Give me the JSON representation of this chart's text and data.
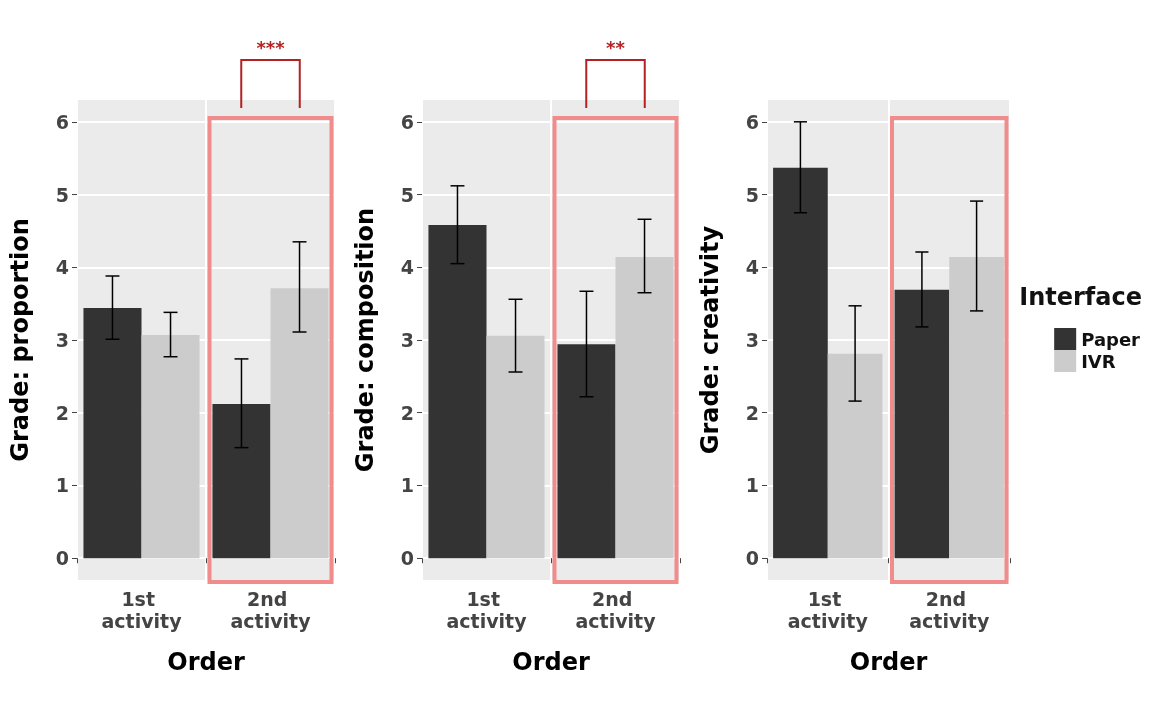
{
  "chart_data": [
    {
      "type": "bar",
      "ylabel": "Grade: proportion",
      "xlabel": "Order",
      "categories": [
        "1st activity",
        "2nd activity"
      ],
      "ylim": [
        -0.3,
        6.3
      ],
      "yticks": [
        0,
        1,
        2,
        3,
        4,
        5,
        6
      ],
      "grid": true,
      "legend": false,
      "annotations": [
        "***"
      ],
      "series": [
        {
          "color": "#333333",
          "values": [
            3.44,
            2.12
          ],
          "errors": [
            [
              3.01,
              3.88
            ],
            [
              1.52,
              2.74
            ]
          ]
        },
        {
          "color": "#cccccc",
          "values": [
            3.07,
            3.71
          ],
          "errors": [
            [
              2.77,
              3.38
            ],
            [
              3.11,
              4.35
            ]
          ]
        }
      ]
    },
    {
      "type": "bar",
      "ylabel": "Grade: composition",
      "xlabel": "Order",
      "categories": [
        "1st activity",
        "2nd activity"
      ],
      "ylim": [
        -0.3,
        6.3
      ],
      "yticks": [
        0,
        1,
        2,
        3,
        4,
        5,
        6
      ],
      "grid": true,
      "legend": false,
      "annotations": [
        "**"
      ],
      "series": [
        {
          "color": "#333333",
          "values": [
            4.58,
            2.94
          ],
          "errors": [
            [
              4.05,
              5.12
            ],
            [
              2.22,
              3.67
            ]
          ]
        },
        {
          "color": "#cccccc",
          "values": [
            3.06,
            4.14
          ],
          "errors": [
            [
              2.56,
              3.56
            ],
            [
              3.65,
              4.66
            ]
          ]
        }
      ]
    },
    {
      "type": "bar",
      "ylabel": "Grade: creativity",
      "xlabel": "Order",
      "categories": [
        "1st activity",
        "2nd activity"
      ],
      "ylim": [
        -0.3,
        6.3
      ],
      "yticks": [
        0,
        1,
        2,
        3,
        4,
        5,
        6
      ],
      "grid": true,
      "legend": "right",
      "legend_title": "Interface",
      "series": [
        {
          "name": "Paper",
          "color": "#333333",
          "values": [
            5.37,
            3.69
          ],
          "errors": [
            [
              4.75,
              6.0
            ],
            [
              3.18,
              4.21
            ]
          ]
        },
        {
          "name": "IVR",
          "color": "#cccccc",
          "values": [
            2.81,
            4.14
          ],
          "errors": [
            [
              2.16,
              3.47
            ],
            [
              3.4,
              4.91
            ]
          ]
        }
      ]
    }
  ]
}
